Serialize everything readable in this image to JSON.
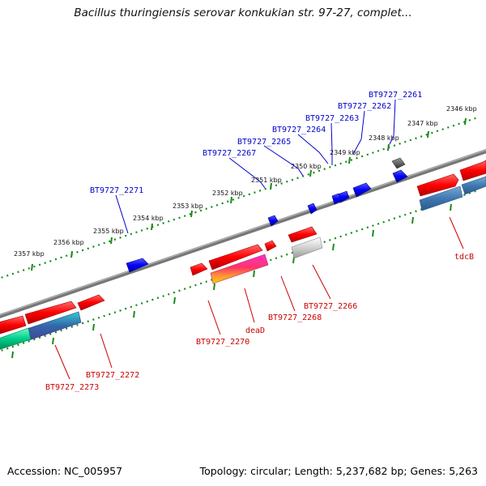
{
  "title": "Bacillus thuringiensis serovar konkukian str. 97-27, complet...",
  "footer": {
    "accession": "Accession: NC_005957",
    "stats": "Topology: circular; Length: 5,237,682 bp; Genes: 5,263"
  },
  "colors": {
    "backbone": "#7a7a7a",
    "tick": "#1a8a1a",
    "forward_gene": "#ff0000",
    "reverse_gene": "#ff0000",
    "small_gene": "#0000ff",
    "gene_label_top": "#0000cc",
    "gene_label_bottom": "#cc0000"
  },
  "scale_labels": [
    "2346 kbp",
    "2347 kbp",
    "2348 kbp",
    "2349 kbp",
    "2350 kbp",
    "2351 kbp",
    "2352 kbp",
    "2353 kbp",
    "2354 kbp",
    "2355 kbp",
    "2356 kbp",
    "2357 kbp"
  ],
  "gene_labels_top": [
    "BT9727_2261",
    "BT9727_2262",
    "BT9727_2263",
    "BT9727_2264",
    "BT9727_2265",
    "BT9727_2267",
    "BT9727_2271"
  ],
  "gene_labels_bottom": [
    "tdcB",
    "BT9727_2266",
    "BT9727_2268",
    "deaD",
    "BT9727_2270",
    "BT9727_2272",
    "BT9727_2273"
  ]
}
